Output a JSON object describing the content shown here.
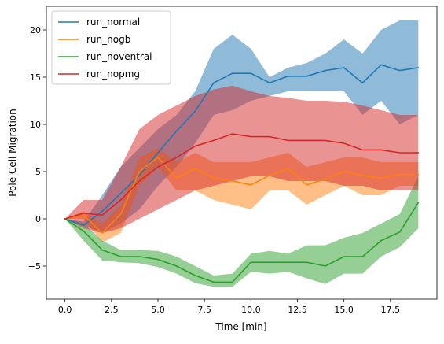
{
  "chart_data": {
    "type": "line",
    "title": "",
    "xlabel": "Time [min]",
    "ylabel": "Pole Cell Migration",
    "xlim": [
      -1.0,
      20.0
    ],
    "ylim": [
      -8.5,
      22.5
    ],
    "xticks": [
      0.0,
      2.5,
      5.0,
      7.5,
      10.0,
      12.5,
      15.0,
      17.5
    ],
    "xtick_labels": [
      "0.0",
      "2.5",
      "5.0",
      "7.5",
      "10.0",
      "12.5",
      "15.0",
      "17.5"
    ],
    "yticks": [
      -5,
      0,
      5,
      10,
      15,
      20
    ],
    "ytick_labels": [
      "−5",
      "0",
      "5",
      "10",
      "15",
      "20"
    ],
    "grid": false,
    "legend_position": "top-left",
    "x": [
      0,
      1,
      2,
      3,
      4,
      5,
      6,
      7,
      8,
      9,
      10,
      11,
      12,
      13,
      14,
      15,
      16,
      17,
      18,
      19
    ],
    "series": [
      {
        "name": "run_normal",
        "color": "#1f77b4",
        "values": [
          0,
          -0.7,
          0.8,
          2.7,
          4.6,
          7.0,
          9.3,
          11.4,
          14.4,
          15.4,
          15.4,
          14.4,
          15.1,
          15.1,
          15.7,
          16.0,
          14.4,
          16.3,
          15.7,
          16.0
        ],
        "lower": [
          0,
          -0.7,
          -1.5,
          -0.5,
          1.0,
          3.5,
          5.5,
          8.0,
          11.0,
          11.5,
          12.5,
          13.0,
          13.5,
          13.5,
          13.5,
          13.5,
          11.0,
          12.5,
          10.0,
          11.0
        ],
        "upper": [
          0,
          -0.3,
          2.5,
          5.5,
          7.5,
          9.5,
          11.0,
          13.5,
          18.0,
          19.5,
          18.0,
          15.0,
          16.0,
          16.5,
          17.5,
          19.0,
          17.5,
          20.0,
          21.0,
          21.0
        ]
      },
      {
        "name": "run_nogb",
        "color": "#ff7f0e",
        "values": [
          0,
          0.4,
          -1.5,
          0.5,
          5.0,
          6.5,
          4.3,
          5.3,
          4.3,
          4.0,
          3.6,
          4.6,
          5.3,
          3.6,
          4.2,
          5.0,
          4.6,
          4.3,
          4.7,
          4.7
        ],
        "lower": [
          0,
          0.0,
          -2.5,
          -1.5,
          3.5,
          5.5,
          3.0,
          3.0,
          2.0,
          1.5,
          1.0,
          3.0,
          3.0,
          1.5,
          2.5,
          3.5,
          2.5,
          2.5,
          3.5,
          3.5
        ],
        "upper": [
          0,
          0.8,
          -0.5,
          1.5,
          6.5,
          7.5,
          6.0,
          7.0,
          6.0,
          6.0,
          6.0,
          6.5,
          7.0,
          5.5,
          6.0,
          6.5,
          6.5,
          6.0,
          6.0,
          6.0
        ]
      },
      {
        "name": "run_noventral",
        "color": "#2ca02c",
        "values": [
          0,
          -1.3,
          -3.3,
          -4.0,
          -4.0,
          -4.3,
          -5.0,
          -6.0,
          -6.7,
          -6.7,
          -4.6,
          -4.6,
          -4.6,
          -4.6,
          -5.0,
          -4.0,
          -4.0,
          -2.3,
          -1.4,
          1.7
        ],
        "lower": [
          0,
          -2.3,
          -4.4,
          -4.6,
          -4.7,
          -5.1,
          -5.8,
          -6.8,
          -7.2,
          -7.2,
          -5.6,
          -5.8,
          -5.6,
          -6.3,
          -6.9,
          -5.8,
          -5.8,
          -4.0,
          -3.0,
          -1.0
        ],
        "upper": [
          0,
          -0.5,
          -2.3,
          -3.3,
          -3.3,
          -3.4,
          -4.0,
          -5.0,
          -6.0,
          -5.8,
          -3.7,
          -3.4,
          -3.7,
          -2.8,
          -2.8,
          -2.0,
          -1.5,
          -0.5,
          0.5,
          4.5
        ]
      },
      {
        "name": "run_nopmg",
        "color": "#d62728",
        "values": [
          0,
          0.6,
          0.4,
          2.0,
          4.0,
          5.5,
          6.5,
          7.7,
          8.3,
          9.0,
          8.7,
          8.7,
          8.3,
          8.3,
          8.3,
          8.0,
          7.3,
          7.3,
          7.0,
          7.0
        ],
        "lower": [
          0,
          -1.0,
          -1.5,
          -1.0,
          0.0,
          1.0,
          2.0,
          3.0,
          3.5,
          4.0,
          4.5,
          4.5,
          4.0,
          4.0,
          4.0,
          3.5,
          3.5,
          3.0,
          3.0,
          3.0
        ],
        "upper": [
          0,
          2.0,
          2.0,
          5.5,
          9.5,
          11.0,
          12.0,
          13.0,
          13.7,
          14.1,
          13.5,
          13.0,
          12.8,
          12.5,
          12.5,
          12.4,
          12.0,
          11.5,
          11.0,
          11.0
        ]
      }
    ],
    "band_opacity": 0.5
  }
}
